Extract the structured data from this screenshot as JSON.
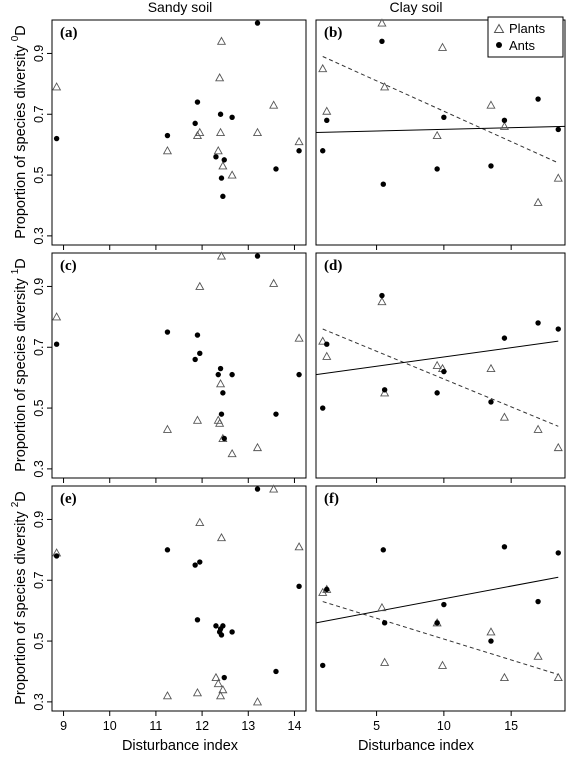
{
  "figure": {
    "column_titles": [
      "Sandy soil",
      "Clay soil"
    ],
    "row_ylabels": [
      {
        "main": "Proportion of species diversity ",
        "sup": "0",
        "tail": "D"
      },
      {
        "main": "Proportion of species diversity ",
        "sup": "1",
        "tail": "D"
      },
      {
        "main": "Proportion of species diversity ",
        "sup": "2",
        "tail": "D"
      }
    ],
    "xlabel": "Disturbance index",
    "legend": [
      {
        "label": "Plants",
        "marker": "open-triangle"
      },
      {
        "label": "Ants",
        "marker": "filled-circle"
      }
    ]
  },
  "chart_data": [
    {
      "type": "scatter",
      "panel": "(a)",
      "soil": "Sandy soil",
      "diversity_order": "0D",
      "xlim": [
        8.75,
        14.25
      ],
      "ylim": [
        0.27,
        1.01
      ],
      "xticks": [
        9,
        10,
        11,
        12,
        13,
        14
      ],
      "yticks": [
        0.3,
        0.5,
        0.7,
        0.9
      ],
      "show_x_tick_labels": false,
      "series": [
        {
          "name": "Plants",
          "marker": "open-triangle",
          "points": [
            [
              8.85,
              0.79
            ],
            [
              11.25,
              0.58
            ],
            [
              11.9,
              0.63
            ],
            [
              11.95,
              0.64
            ],
            [
              12.35,
              0.58
            ],
            [
              12.38,
              0.82
            ],
            [
              12.4,
              0.64
            ],
            [
              12.42,
              0.94
            ],
            [
              12.45,
              0.53
            ],
            [
              12.65,
              0.5
            ],
            [
              13.2,
              0.64
            ],
            [
              13.55,
              0.73
            ],
            [
              14.1,
              0.61
            ]
          ]
        },
        {
          "name": "Ants",
          "marker": "filled-circle",
          "points": [
            [
              8.85,
              0.62
            ],
            [
              11.25,
              0.63
            ],
            [
              11.85,
              0.67
            ],
            [
              11.9,
              0.74
            ],
            [
              12.3,
              0.56
            ],
            [
              12.4,
              0.7
            ],
            [
              12.42,
              0.49
            ],
            [
              12.45,
              0.43
            ],
            [
              12.48,
              0.55
            ],
            [
              12.65,
              0.69
            ],
            [
              13.2,
              1.0
            ],
            [
              13.6,
              0.52
            ],
            [
              14.1,
              0.58
            ]
          ]
        }
      ]
    },
    {
      "type": "scatter",
      "panel": "(b)",
      "soil": "Clay soil",
      "diversity_order": "0D",
      "xlim": [
        0.5,
        19.0
      ],
      "ylim": [
        0.27,
        1.01
      ],
      "xticks": [
        5,
        10,
        15
      ],
      "yticks": [
        0.3,
        0.5,
        0.7,
        0.9
      ],
      "show_x_tick_labels": false,
      "series": [
        {
          "name": "Plants",
          "marker": "open-triangle",
          "points": [
            [
              1.0,
              0.85
            ],
            [
              1.3,
              0.71
            ],
            [
              5.4,
              1.0
            ],
            [
              5.6,
              0.79
            ],
            [
              9.5,
              0.63
            ],
            [
              9.9,
              0.92
            ],
            [
              13.5,
              0.73
            ],
            [
              14.5,
              0.66
            ],
            [
              17.0,
              0.41
            ],
            [
              18.5,
              0.49
            ]
          ]
        },
        {
          "name": "Ants",
          "marker": "filled-circle",
          "points": [
            [
              1.0,
              0.58
            ],
            [
              1.3,
              0.68
            ],
            [
              5.5,
              0.47
            ],
            [
              5.4,
              0.94
            ],
            [
              9.5,
              0.52
            ],
            [
              10.0,
              0.69
            ],
            [
              13.5,
              0.53
            ],
            [
              14.5,
              0.68
            ],
            [
              17.0,
              0.75
            ],
            [
              18.5,
              0.65
            ]
          ]
        }
      ],
      "fit_lines": [
        {
          "series": "Plants",
          "style": "dashed",
          "x": [
            1.0,
            18.5
          ],
          "y": [
            0.89,
            0.54
          ]
        },
        {
          "series": "Ants",
          "style": "solid",
          "x": [
            0.5,
            19.0
          ],
          "y": [
            0.64,
            0.66
          ]
        }
      ]
    },
    {
      "type": "scatter",
      "panel": "(c)",
      "soil": "Sandy soil",
      "diversity_order": "1D",
      "xlim": [
        8.75,
        14.25
      ],
      "ylim": [
        0.27,
        1.01
      ],
      "xticks": [
        9,
        10,
        11,
        12,
        13,
        14
      ],
      "yticks": [
        0.3,
        0.5,
        0.7,
        0.9
      ],
      "show_x_tick_labels": false,
      "series": [
        {
          "name": "Plants",
          "marker": "open-triangle",
          "points": [
            [
              8.85,
              0.8
            ],
            [
              11.25,
              0.43
            ],
            [
              11.9,
              0.46
            ],
            [
              11.95,
              0.9
            ],
            [
              12.35,
              0.46
            ],
            [
              12.38,
              0.45
            ],
            [
              12.4,
              0.58
            ],
            [
              12.42,
              1.0
            ],
            [
              12.45,
              0.4
            ],
            [
              12.65,
              0.35
            ],
            [
              13.2,
              0.37
            ],
            [
              13.55,
              0.91
            ],
            [
              14.1,
              0.73
            ]
          ]
        },
        {
          "name": "Ants",
          "marker": "filled-circle",
          "points": [
            [
              8.85,
              0.71
            ],
            [
              11.25,
              0.75
            ],
            [
              11.85,
              0.66
            ],
            [
              11.9,
              0.74
            ],
            [
              11.95,
              0.68
            ],
            [
              12.35,
              0.61
            ],
            [
              12.4,
              0.63
            ],
            [
              12.42,
              0.48
            ],
            [
              12.45,
              0.55
            ],
            [
              12.48,
              0.4
            ],
            [
              12.65,
              0.61
            ],
            [
              13.2,
              1.0
            ],
            [
              13.6,
              0.48
            ],
            [
              14.1,
              0.61
            ]
          ]
        }
      ]
    },
    {
      "type": "scatter",
      "panel": "(d)",
      "soil": "Clay soil",
      "diversity_order": "1D",
      "xlim": [
        0.5,
        19.0
      ],
      "ylim": [
        0.27,
        1.01
      ],
      "xticks": [
        5,
        10,
        15
      ],
      "yticks": [
        0.3,
        0.5,
        0.7,
        0.9
      ],
      "show_x_tick_labels": false,
      "series": [
        {
          "name": "Plants",
          "marker": "open-triangle",
          "points": [
            [
              1.0,
              0.72
            ],
            [
              1.3,
              0.67
            ],
            [
              5.4,
              0.85
            ],
            [
              5.6,
              0.55
            ],
            [
              9.5,
              0.64
            ],
            [
              9.9,
              0.63
            ],
            [
              13.5,
              0.63
            ],
            [
              14.5,
              0.47
            ],
            [
              17.0,
              0.43
            ],
            [
              18.5,
              0.37
            ]
          ]
        },
        {
          "name": "Ants",
          "marker": "filled-circle",
          "points": [
            [
              1.0,
              0.5
            ],
            [
              1.3,
              0.71
            ],
            [
              5.4,
              0.87
            ],
            [
              5.6,
              0.56
            ],
            [
              9.5,
              0.55
            ],
            [
              10.0,
              0.62
            ],
            [
              13.5,
              0.52
            ],
            [
              14.5,
              0.73
            ],
            [
              17.0,
              0.78
            ],
            [
              18.5,
              0.76
            ]
          ]
        }
      ],
      "fit_lines": [
        {
          "series": "Plants",
          "style": "dashed",
          "x": [
            1.0,
            18.5
          ],
          "y": [
            0.76,
            0.44
          ]
        },
        {
          "series": "Ants",
          "style": "solid",
          "x": [
            0.5,
            18.5
          ],
          "y": [
            0.61,
            0.72
          ]
        }
      ]
    },
    {
      "type": "scatter",
      "panel": "(e)",
      "soil": "Sandy soil",
      "diversity_order": "2D",
      "xlim": [
        8.75,
        14.25
      ],
      "ylim": [
        0.27,
        1.01
      ],
      "xticks": [
        9,
        10,
        11,
        12,
        13,
        14
      ],
      "yticks": [
        0.3,
        0.5,
        0.7,
        0.9
      ],
      "show_x_tick_labels": true,
      "series": [
        {
          "name": "Plants",
          "marker": "open-triangle",
          "points": [
            [
              8.85,
              0.79
            ],
            [
              11.25,
              0.32
            ],
            [
              11.9,
              0.33
            ],
            [
              11.95,
              0.89
            ],
            [
              12.3,
              0.38
            ],
            [
              12.35,
              0.36
            ],
            [
              12.4,
              0.32
            ],
            [
              12.42,
              0.84
            ],
            [
              12.45,
              0.34
            ],
            [
              13.2,
              0.3
            ],
            [
              13.55,
              1.0
            ],
            [
              14.1,
              0.81
            ]
          ]
        },
        {
          "name": "Ants",
          "marker": "filled-circle",
          "points": [
            [
              8.85,
              0.78
            ],
            [
              11.25,
              0.8
            ],
            [
              11.85,
              0.75
            ],
            [
              11.9,
              0.57
            ],
            [
              11.95,
              0.76
            ],
            [
              12.3,
              0.55
            ],
            [
              12.38,
              0.53
            ],
            [
              12.4,
              0.54
            ],
            [
              12.42,
              0.52
            ],
            [
              12.45,
              0.55
            ],
            [
              12.48,
              0.38
            ],
            [
              12.65,
              0.53
            ],
            [
              13.2,
              1.0
            ],
            [
              13.6,
              0.4
            ],
            [
              14.1,
              0.68
            ]
          ]
        }
      ]
    },
    {
      "type": "scatter",
      "panel": "(f)",
      "soil": "Clay soil",
      "diversity_order": "2D",
      "xlim": [
        0.5,
        19.0
      ],
      "ylim": [
        0.27,
        1.01
      ],
      "xticks": [
        5,
        10,
        15
      ],
      "yticks": [
        0.3,
        0.5,
        0.7,
        0.9
      ],
      "show_x_tick_labels": true,
      "series": [
        {
          "name": "Plants",
          "marker": "open-triangle",
          "points": [
            [
              1.0,
              0.66
            ],
            [
              1.3,
              0.67
            ],
            [
              5.4,
              0.61
            ],
            [
              5.6,
              0.43
            ],
            [
              9.5,
              0.56
            ],
            [
              9.9,
              0.42
            ],
            [
              13.5,
              0.53
            ],
            [
              14.5,
              0.38
            ],
            [
              17.0,
              0.45
            ],
            [
              18.5,
              0.38
            ]
          ]
        },
        {
          "name": "Ants",
          "marker": "filled-circle",
          "points": [
            [
              1.0,
              0.42
            ],
            [
              1.3,
              0.67
            ],
            [
              5.5,
              0.8
            ],
            [
              5.6,
              0.56
            ],
            [
              9.5,
              0.56
            ],
            [
              10.0,
              0.62
            ],
            [
              13.5,
              0.5
            ],
            [
              14.5,
              0.81
            ],
            [
              17.0,
              0.63
            ],
            [
              18.5,
              0.79
            ]
          ]
        }
      ],
      "fit_lines": [
        {
          "series": "Plants",
          "style": "dashed",
          "x": [
            1.0,
            18.5
          ],
          "y": [
            0.63,
            0.39
          ]
        },
        {
          "series": "Ants",
          "style": "solid",
          "x": [
            0.5,
            18.5
          ],
          "y": [
            0.56,
            0.71
          ]
        }
      ]
    }
  ]
}
